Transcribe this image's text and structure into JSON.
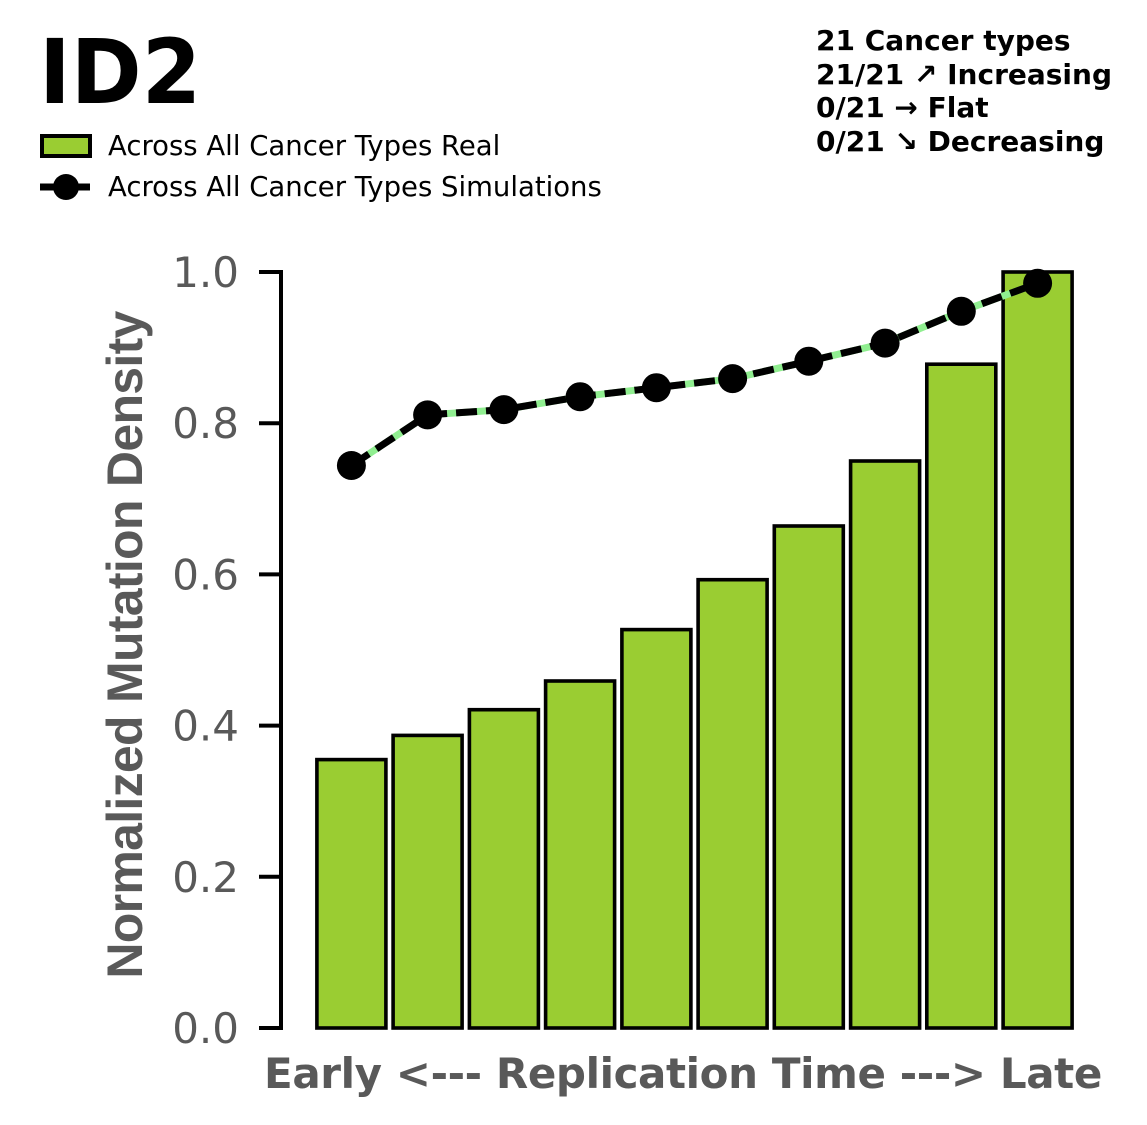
{
  "chart_data": {
    "type": "bar",
    "title": "ID2",
    "xlabel": "Early <--- Replication Time ---> Late",
    "ylabel": "Normalized Mutation Density",
    "ylim": [
      0.0,
      1.0
    ],
    "yticks": [
      0.0,
      0.2,
      0.4,
      0.6,
      0.8,
      1.0
    ],
    "x_bins": 10,
    "grid": false,
    "legend_position": "upper-left-outside",
    "series": [
      {
        "name": "Across All Cancer Types Real",
        "type": "bar",
        "color": "#9acd32",
        "edge_color": "#000000",
        "values": [
          0.355,
          0.387,
          0.421,
          0.459,
          0.527,
          0.593,
          0.664,
          0.75,
          0.878,
          1.0
        ]
      },
      {
        "name": "Across All Cancer Types Simulations",
        "type": "line",
        "color": "#000000",
        "dash_gap_color": "#90ee90",
        "marker": "circle",
        "values": [
          0.744,
          0.811,
          0.818,
          0.835,
          0.847,
          0.859,
          0.882,
          0.906,
          0.948,
          0.985
        ]
      }
    ]
  },
  "annotations": {
    "cancer_types": "21 Cancer types",
    "increasing": "21/21 ↗ Increasing",
    "flat": "0/21 → Flat",
    "decreasing": "0/21 ↘ Decreasing"
  }
}
